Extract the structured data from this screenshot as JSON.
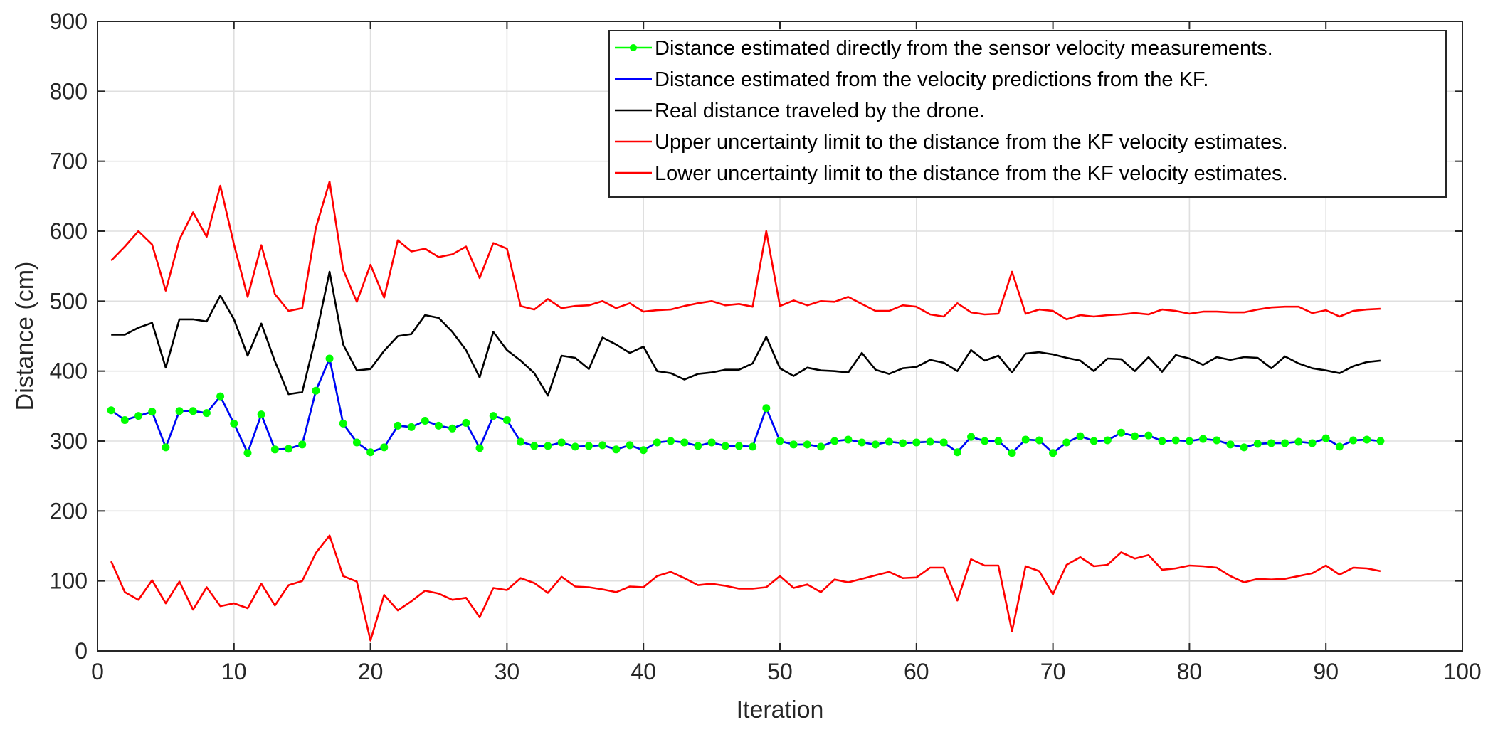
{
  "chart_data": {
    "type": "line",
    "title": "",
    "xlabel": "Iteration",
    "ylabel": "Distance (cm)",
    "xlim": [
      0,
      100
    ],
    "ylim": [
      0,
      900
    ],
    "xticks": [
      0,
      10,
      20,
      30,
      40,
      50,
      60,
      70,
      80,
      90,
      100
    ],
    "yticks": [
      0,
      100,
      200,
      300,
      400,
      500,
      600,
      700,
      800,
      900
    ],
    "grid": true,
    "legend_position": "top-right",
    "series": [
      {
        "name": "Distance estimated directly from the sensor velocity measurements.",
        "color": "#00ff00",
        "line_color": "#00ff00",
        "marker": true,
        "values": [
          344,
          330,
          336,
          342,
          291,
          343,
          343,
          340,
          364,
          325,
          283,
          338,
          288,
          289,
          295,
          372,
          418,
          325,
          298,
          284,
          291,
          322,
          320,
          329,
          322,
          318,
          326,
          290,
          336,
          330,
          299,
          293,
          293,
          298,
          292,
          293,
          294,
          288,
          294,
          287,
          298,
          300,
          298,
          293,
          298,
          293,
          293,
          292,
          347,
          300,
          295,
          295,
          292,
          300,
          302,
          298,
          295,
          299,
          297,
          298,
          299,
          298,
          284,
          306,
          300,
          300,
          283,
          302,
          301,
          283,
          298,
          307,
          300,
          301,
          312,
          307,
          308,
          300,
          301,
          300,
          303,
          301,
          295,
          291,
          296,
          297,
          297,
          299,
          297,
          304,
          292,
          301,
          302,
          300
        ]
      },
      {
        "name": "Distance estimated from the velocity predictions from the KF.",
        "color": "#0000ff",
        "line_color": "#0000ff",
        "marker": false,
        "values": [
          344,
          330,
          336,
          342,
          291,
          343,
          343,
          340,
          364,
          325,
          283,
          338,
          288,
          289,
          295,
          372,
          418,
          325,
          298,
          284,
          291,
          322,
          320,
          329,
          322,
          318,
          326,
          290,
          336,
          330,
          299,
          293,
          293,
          298,
          292,
          293,
          294,
          288,
          294,
          287,
          298,
          300,
          298,
          293,
          298,
          293,
          293,
          292,
          347,
          300,
          295,
          295,
          292,
          300,
          302,
          298,
          295,
          299,
          297,
          298,
          299,
          298,
          284,
          306,
          300,
          300,
          283,
          302,
          301,
          283,
          298,
          307,
          300,
          301,
          312,
          307,
          308,
          300,
          301,
          300,
          303,
          301,
          295,
          291,
          296,
          297,
          297,
          299,
          297,
          304,
          292,
          301,
          302,
          300
        ]
      },
      {
        "name": "Real distance traveled by the drone.",
        "color": "#000000",
        "line_color": "#000000",
        "marker": false,
        "values": [
          452,
          452,
          462,
          469,
          405,
          474,
          474,
          471,
          508,
          474,
          422,
          468,
          414,
          367,
          370,
          450,
          542,
          438,
          401,
          403,
          429,
          450,
          453,
          480,
          476,
          456,
          430,
          391,
          456,
          430,
          415,
          397,
          365,
          422,
          419,
          403,
          448,
          438,
          426,
          435,
          400,
          397,
          388,
          396,
          398,
          402,
          402,
          411,
          449,
          404,
          393,
          405,
          401,
          400,
          398,
          426,
          402,
          396,
          404,
          406,
          416,
          412,
          400,
          430,
          415,
          422,
          398,
          425,
          427,
          424,
          419,
          415,
          400,
          418,
          417,
          400,
          420,
          399,
          423,
          418,
          409,
          420,
          416,
          420,
          419,
          404,
          421,
          411,
          404,
          401,
          397,
          407,
          413,
          415
        ]
      },
      {
        "name": "Upper uncertainty limit to the distance from the KF velocity estimates.",
        "color": "#ff0000",
        "line_color": "#ff0000",
        "marker": false,
        "values": [
          558,
          578,
          600,
          581,
          515,
          588,
          627,
          592,
          665,
          581,
          506,
          580,
          510,
          486,
          490,
          605,
          671,
          545,
          499,
          552,
          505,
          587,
          571,
          575,
          563,
          567,
          578,
          533,
          583,
          575,
          493,
          488,
          503,
          490,
          493,
          494,
          500,
          490,
          497,
          485,
          487,
          488,
          493,
          497,
          500,
          494,
          496,
          492,
          600,
          493,
          501,
          494,
          500,
          499,
          506,
          496,
          486,
          486,
          494,
          492,
          481,
          478,
          497,
          484,
          481,
          482,
          542,
          482,
          488,
          486,
          474,
          480,
          478,
          480,
          481,
          483,
          481,
          488,
          486,
          482,
          485,
          485,
          484,
          484,
          488,
          491,
          492,
          492,
          483,
          487,
          478,
          486,
          488,
          489
        ]
      },
      {
        "name": "Lower uncertainty limit to the distance from the KF velocity estimates.",
        "color": "#ff0000",
        "line_color": "#ff0000",
        "marker": false,
        "values": [
          128,
          84,
          73,
          101,
          68,
          99,
          59,
          91,
          64,
          68,
          61,
          96,
          65,
          94,
          100,
          140,
          165,
          107,
          99,
          15,
          80,
          58,
          71,
          86,
          82,
          73,
          76,
          48,
          90,
          87,
          104,
          97,
          83,
          106,
          92,
          91,
          88,
          84,
          92,
          91,
          107,
          113,
          104,
          94,
          96,
          93,
          89,
          89,
          91,
          107,
          90,
          95,
          84,
          102,
          98,
          103,
          108,
          113,
          104,
          105,
          119,
          119,
          72,
          131,
          122,
          122,
          28,
          121,
          114,
          81,
          123,
          134,
          121,
          123,
          141,
          132,
          137,
          116,
          118,
          122,
          121,
          119,
          107,
          98,
          103,
          102,
          103,
          107,
          111,
          122,
          109,
          119,
          118,
          114
        ]
      }
    ]
  }
}
